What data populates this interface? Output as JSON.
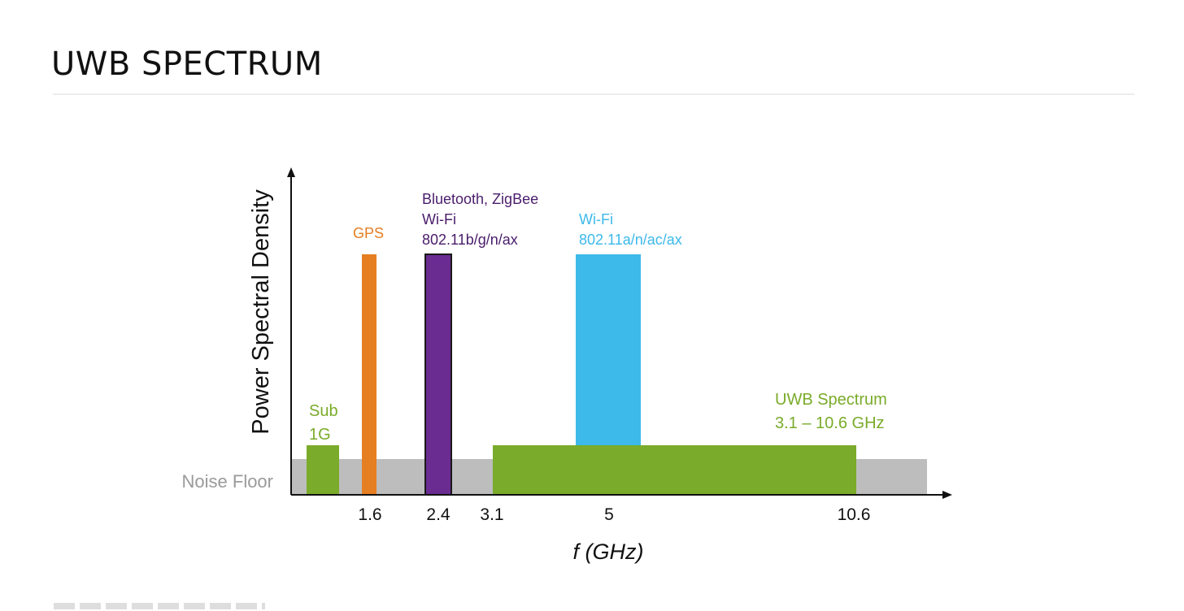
{
  "slide": {
    "title": "UWB SPECTRUM"
  },
  "colors": {
    "noise_floor": "#bdbdbd",
    "noise_label": "#9a9a9a",
    "sub1g": "#7aab2a",
    "gps": "#e67e22",
    "bluetooth": "#6a2c91",
    "wifi5": "#3db9ea",
    "uwb": "#7aab2a",
    "axis": "#111111"
  },
  "chart_data": {
    "type": "bar",
    "title": "",
    "xlabel": "f (GHz)",
    "ylabel": "Power Spectral Density",
    "x_ticks": [
      "1.6",
      "2.4",
      "3.1",
      "5",
      "10.6"
    ],
    "noise_floor_label": "Noise Floor",
    "series": [
      {
        "name": "Sub 1G",
        "label_lines": [
          "Sub",
          "1G"
        ],
        "level": "low",
        "color_key": "sub1g"
      },
      {
        "name": "GPS",
        "label_lines": [
          "GPS"
        ],
        "center_ghz": 1.6,
        "level": "high",
        "color_key": "gps"
      },
      {
        "name": "Bluetooth, ZigBee Wi-Fi 802.11b/g/n/ax",
        "label_lines": [
          "Bluetooth, ZigBee",
          "Wi-Fi",
          "802.11b/g/n/ax"
        ],
        "center_ghz": 2.4,
        "level": "high",
        "color_key": "bluetooth"
      },
      {
        "name": "Wi-Fi 802.11a/n/ac/ax",
        "label_lines": [
          "Wi-Fi",
          "802.11a/n/ac/ax"
        ],
        "center_ghz": 5,
        "level": "high",
        "color_key": "wifi5"
      },
      {
        "name": "UWB Spectrum",
        "label_lines": [
          "UWB Spectrum",
          "3.1 – 10.6 GHz"
        ],
        "start_ghz": 3.1,
        "end_ghz": 10.6,
        "level": "low",
        "color_key": "uwb"
      }
    ]
  }
}
